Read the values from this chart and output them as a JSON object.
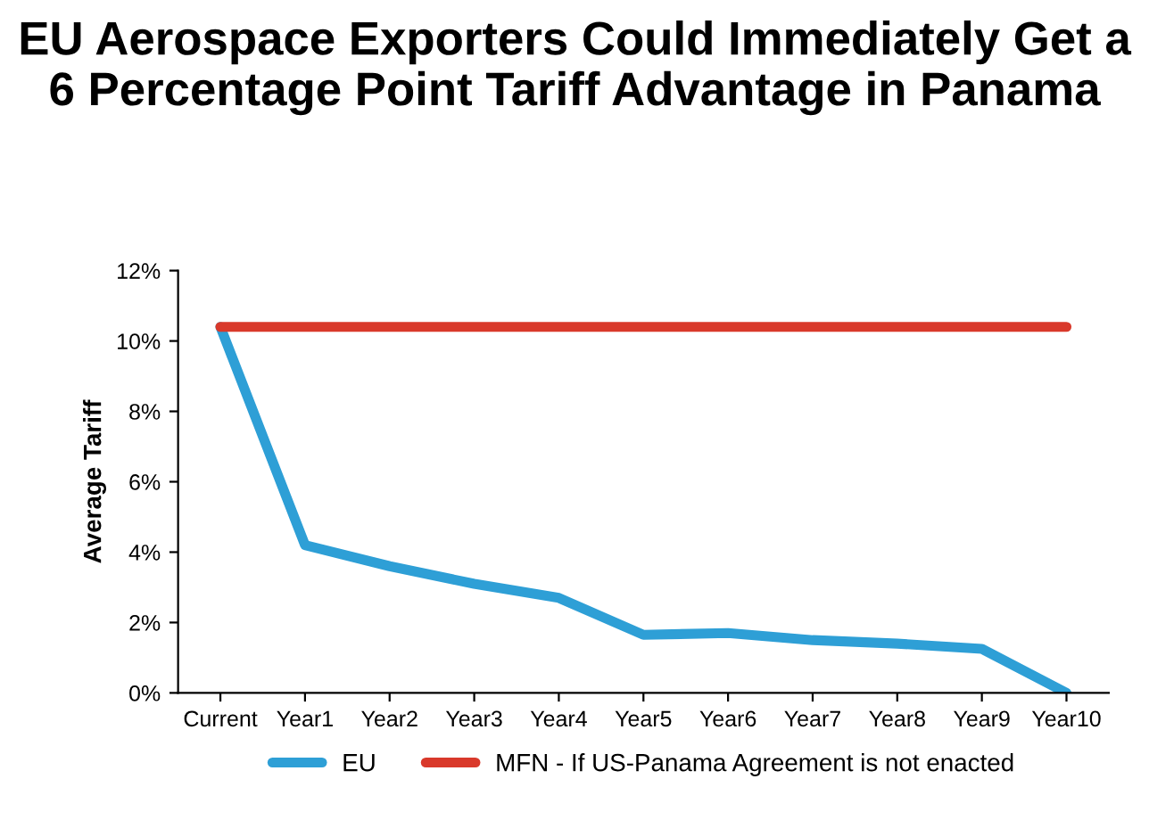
{
  "chart_data": {
    "type": "line",
    "title": "EU Aerospace Exporters Could Immediately Get a 6 Percentage Point Tariff Advantage in Panama",
    "ylabel": "Average Tariff",
    "categories": [
      "Current",
      "Year1",
      "Year2",
      "Year3",
      "Year4",
      "Year5",
      "Year6",
      "Year7",
      "Year8",
      "Year9",
      "Year10"
    ],
    "series": [
      {
        "name": "EU",
        "color": "#2e9fd6",
        "values": [
          10.4,
          4.2,
          3.6,
          3.1,
          2.7,
          1.65,
          1.7,
          1.5,
          1.4,
          1.25,
          0
        ]
      },
      {
        "name": "MFN - If US-Panama Agreement is not enacted",
        "color": "#d9392b",
        "values": [
          10.4,
          10.4,
          10.4,
          10.4,
          10.4,
          10.4,
          10.4,
          10.4,
          10.4,
          10.4,
          10.4
        ]
      }
    ],
    "ylim": [
      0,
      12
    ],
    "yticks": [
      {
        "value": 0,
        "label": "0%"
      },
      {
        "value": 2,
        "label": "2%"
      },
      {
        "value": 4,
        "label": "4%"
      },
      {
        "value": 6,
        "label": "6%"
      },
      {
        "value": 8,
        "label": "8%"
      },
      {
        "value": 10,
        "label": "10%"
      },
      {
        "value": 12,
        "label": "12%"
      }
    ],
    "grid": false,
    "legend": "bottom",
    "marker": "none",
    "line_style": "solid"
  }
}
